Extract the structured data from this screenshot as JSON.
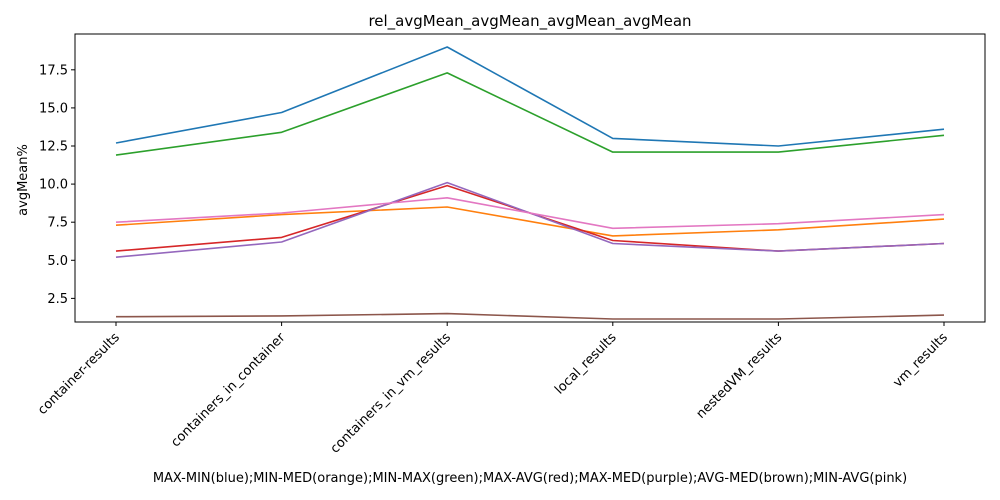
{
  "chart_data": {
    "type": "line",
    "title": "rel_avgMean_avgMean_avgMean_avgMean",
    "xlabel": "MAX-MIN(blue);MIN-MED(orange);MIN-MAX(green);MAX-AVG(red);MAX-MED(purple);AVG-MED(brown);MIN-AVG(pink)",
    "ylabel": "avgMean%",
    "categories": [
      "container-results",
      "containers_in_container",
      "containers_in_vm_results",
      "local_results",
      "nestedVM_results",
      "vm_results"
    ],
    "ylim": [
      0.95,
      19.85
    ],
    "yticks": [
      2.5,
      5.0,
      7.5,
      10.0,
      12.5,
      15.0,
      17.5
    ],
    "ytick_labels": [
      "2.5",
      "5.0",
      "7.5",
      "10.0",
      "12.5",
      "15.0",
      "17.5"
    ],
    "grid": false,
    "series": [
      {
        "color": "#1f77b4",
        "values": [
          12.7,
          14.7,
          19.0,
          13.0,
          12.5,
          13.6
        ]
      },
      {
        "color": "#ff7f0e",
        "values": [
          7.3,
          8.0,
          8.5,
          6.6,
          7.0,
          7.7
        ]
      },
      {
        "color": "#2ca02c",
        "values": [
          11.9,
          13.4,
          17.3,
          12.1,
          12.1,
          13.2
        ]
      },
      {
        "color": "#d62728",
        "values": [
          5.6,
          6.5,
          9.9,
          6.3,
          5.6,
          6.1
        ]
      },
      {
        "color": "#9467bd",
        "values": [
          5.2,
          6.2,
          10.1,
          6.1,
          5.6,
          6.1
        ]
      },
      {
        "color": "#8c564b",
        "values": [
          1.3,
          1.35,
          1.5,
          1.15,
          1.15,
          1.4
        ]
      },
      {
        "color": "#e377c2",
        "values": [
          7.5,
          8.1,
          9.1,
          7.1,
          7.4,
          8.0
        ]
      }
    ]
  }
}
